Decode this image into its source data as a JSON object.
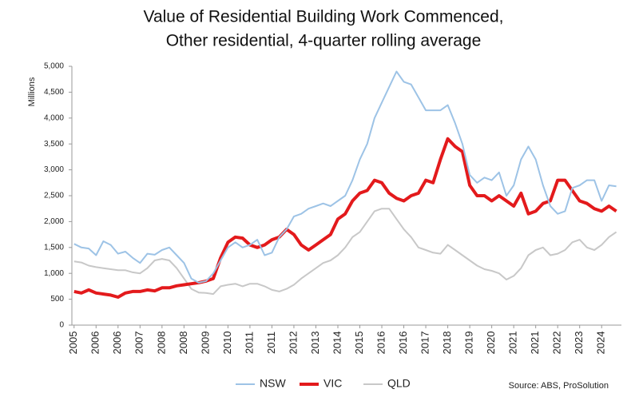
{
  "chart_data": {
    "type": "line",
    "title": [
      "Value of Residential Building Work Commenced,",
      "Other residential, 4-quarter rolling average"
    ],
    "y_label": "Millions",
    "source": "Source: ABS, ProSolution",
    "categories": [
      "2005",
      null,
      null,
      "2006",
      null,
      null,
      "2006",
      null,
      null,
      "2007",
      null,
      null,
      "2008",
      null,
      null,
      "2008",
      null,
      null,
      "2009",
      null,
      null,
      "2010",
      null,
      null,
      "2011",
      null,
      null,
      "2011",
      null,
      null,
      "2012",
      null,
      null,
      "2013",
      null,
      null,
      "2014",
      null,
      null,
      "2015",
      null,
      null,
      "2016",
      null,
      null,
      "2016",
      null,
      null,
      "2017",
      null,
      null,
      "2018",
      null,
      null,
      "2019",
      null,
      null,
      "2020",
      null,
      null,
      "2021",
      null,
      null,
      "2021",
      null,
      null,
      "2022",
      null,
      null,
      "2023",
      null,
      null,
      "2024",
      null,
      null
    ],
    "series": [
      {
        "name": "NSW",
        "color": "#9dc3e6",
        "width": 2,
        "values": [
          1570,
          1500,
          1480,
          1350,
          1620,
          1550,
          1380,
          1420,
          1300,
          1200,
          1380,
          1360,
          1450,
          1500,
          1350,
          1200,
          900,
          820,
          850,
          1000,
          1250,
          1500,
          1600,
          1500,
          1550,
          1650,
          1350,
          1400,
          1700,
          1850,
          2100,
          2150,
          2250,
          2300,
          2350,
          2300,
          2400,
          2500,
          2800,
          3200,
          3500,
          4000,
          4300,
          4600,
          4900,
          4700,
          4650,
          4400,
          4150,
          4150,
          4150,
          4250,
          3900,
          3500,
          2900,
          2750,
          2850,
          2800,
          2950,
          2500,
          2700,
          3200,
          3450,
          3200,
          2700,
          2300,
          2150,
          2200,
          2650,
          2700,
          2800,
          2800,
          2400,
          2700,
          2680
        ]
      },
      {
        "name": "VIC",
        "color": "#e31a1c",
        "width": 4,
        "values": [
          650,
          620,
          680,
          620,
          600,
          580,
          540,
          620,
          650,
          650,
          680,
          660,
          720,
          720,
          760,
          780,
          800,
          820,
          850,
          900,
          1300,
          1600,
          1700,
          1680,
          1550,
          1500,
          1550,
          1650,
          1700,
          1850,
          1750,
          1550,
          1450,
          1550,
          1650,
          1750,
          2050,
          2150,
          2400,
          2550,
          2600,
          2800,
          2750,
          2550,
          2450,
          2400,
          2500,
          2550,
          2800,
          2750,
          3200,
          3600,
          3450,
          3350,
          2700,
          2500,
          2500,
          2400,
          2500,
          2400,
          2300,
          2550,
          2150,
          2200,
          2350,
          2400,
          2800,
          2800,
          2600,
          2400,
          2350,
          2250,
          2200,
          2300,
          2200
        ]
      },
      {
        "name": "QLD",
        "color": "#c8c8c8",
        "width": 2,
        "values": [
          1230,
          1210,
          1150,
          1120,
          1100,
          1080,
          1060,
          1060,
          1020,
          1000,
          1100,
          1250,
          1280,
          1250,
          1100,
          900,
          700,
          630,
          620,
          600,
          750,
          780,
          800,
          750,
          800,
          800,
          750,
          680,
          650,
          700,
          780,
          900,
          1000,
          1100,
          1200,
          1250,
          1350,
          1500,
          1700,
          1800,
          2000,
          2200,
          2250,
          2250,
          2050,
          1850,
          1700,
          1500,
          1450,
          1400,
          1380,
          1550,
          1450,
          1350,
          1250,
          1150,
          1080,
          1050,
          1000,
          880,
          950,
          1100,
          1350,
          1450,
          1500,
          1350,
          1380,
          1450,
          1600,
          1650,
          1500,
          1450,
          1550,
          1700,
          1800
        ]
      }
    ],
    "ylim": [
      0,
      5000
    ],
    "yticks": [
      0,
      500,
      {
        "value": 1000,
        "label": "1,000"
      },
      {
        "value": 1500,
        "label": "1,500"
      },
      {
        "value": 2000,
        "label": "2,000"
      },
      {
        "value": 2500,
        "label": "2,500"
      },
      {
        "value": 3000,
        "label": "3,000"
      },
      {
        "value": 3500,
        "label": "3,500"
      },
      {
        "value": 4000,
        "label": "4,000"
      },
      {
        "value": 4500,
        "label": "4,500"
      },
      {
        "value": 5000,
        "label": "5,000"
      }
    ],
    "grid": false,
    "legend": "bottom"
  }
}
